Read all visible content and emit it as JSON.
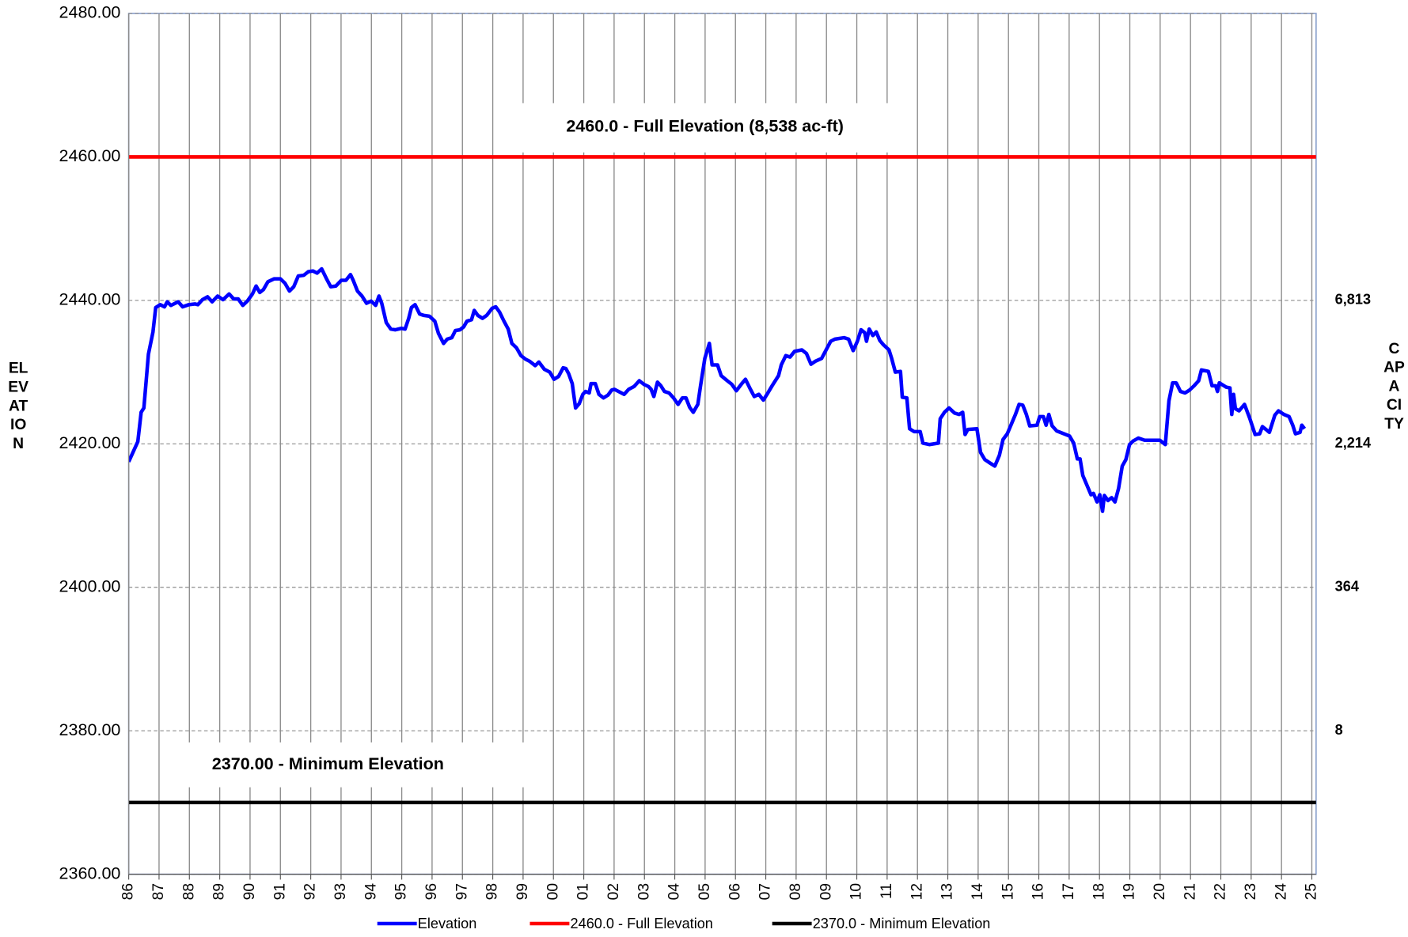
{
  "chart_data": {
    "type": "line",
    "y_axis_title": "ELEVATION",
    "y2_axis_title": "CAPACITY",
    "annotations": [
      {
        "text": "2460.0 - Full Elevation (8,538 ac-ft)"
      },
      {
        "text": "2370.00 - Minimum Elevation"
      }
    ],
    "xlim": [
      1986,
      2025.14
    ],
    "xticks": [
      {
        "value": 1986,
        "label": "86"
      },
      {
        "value": 1987,
        "label": "87"
      },
      {
        "value": 1988,
        "label": "88"
      },
      {
        "value": 1989,
        "label": "89"
      },
      {
        "value": 1990,
        "label": "90"
      },
      {
        "value": 1991,
        "label": "91"
      },
      {
        "value": 1992,
        "label": "92"
      },
      {
        "value": 1993,
        "label": "93"
      },
      {
        "value": 1994,
        "label": "94"
      },
      {
        "value": 1995,
        "label": "95"
      },
      {
        "value": 1996,
        "label": "96"
      },
      {
        "value": 1997,
        "label": "97"
      },
      {
        "value": 1998,
        "label": "98"
      },
      {
        "value": 1999,
        "label": "99"
      },
      {
        "value": 2000,
        "label": "00"
      },
      {
        "value": 2001,
        "label": "01"
      },
      {
        "value": 2002,
        "label": "02"
      },
      {
        "value": 2003,
        "label": "03"
      },
      {
        "value": 2004,
        "label": "04"
      },
      {
        "value": 2005,
        "label": "05"
      },
      {
        "value": 2006,
        "label": "06"
      },
      {
        "value": 2007,
        "label": "07"
      },
      {
        "value": 2008,
        "label": "08"
      },
      {
        "value": 2009,
        "label": "09"
      },
      {
        "value": 2010,
        "label": "10"
      },
      {
        "value": 2011,
        "label": "11"
      },
      {
        "value": 2012,
        "label": "12"
      },
      {
        "value": 2013,
        "label": "13"
      },
      {
        "value": 2014,
        "label": "14"
      },
      {
        "value": 2015,
        "label": "15"
      },
      {
        "value": 2016,
        "label": "16"
      },
      {
        "value": 2017,
        "label": "17"
      },
      {
        "value": 2018,
        "label": "18"
      },
      {
        "value": 2019,
        "label": "19"
      },
      {
        "value": 2020,
        "label": "20"
      },
      {
        "value": 2021,
        "label": "21"
      },
      {
        "value": 2022,
        "label": "22"
      },
      {
        "value": 2023,
        "label": "23"
      },
      {
        "value": 2024,
        "label": "24"
      },
      {
        "value": 2025,
        "label": "25"
      }
    ],
    "ylim": [
      2360,
      2480
    ],
    "yticks": [
      {
        "value": 2360,
        "label": "2360.00"
      },
      {
        "value": 2380,
        "label": "2380.00"
      },
      {
        "value": 2400,
        "label": "2400.00"
      },
      {
        "value": 2420,
        "label": "2420.00"
      },
      {
        "value": 2440,
        "label": "2440.00"
      },
      {
        "value": 2460,
        "label": "2460.00"
      },
      {
        "value": 2480,
        "label": "2480.00"
      }
    ],
    "y2ticks": [
      {
        "at": 2440,
        "value": 6813,
        "label": "6,813"
      },
      {
        "at": 2420,
        "value": 2214,
        "label": "2,214"
      },
      {
        "at": 2400,
        "value": 364,
        "label": "364"
      },
      {
        "at": 2380,
        "value": 8,
        "label": "8"
      }
    ],
    "grid": true,
    "series": [
      {
        "name": "Elevation",
        "color": "#0000ff",
        "x": [
          1986.0,
          1986.3,
          1986.41,
          1986.5,
          1986.65,
          1986.8,
          1986.89,
          1987.04,
          1987.18,
          1987.27,
          1987.39,
          1987.63,
          1987.78,
          1987.98,
          1988.19,
          1988.28,
          1988.43,
          1988.6,
          1988.75,
          1988.93,
          1989.11,
          1989.31,
          1989.46,
          1989.61,
          1989.76,
          1989.91,
          1990.08,
          1990.2,
          1990.32,
          1990.44,
          1990.59,
          1990.79,
          1991.0,
          1991.15,
          1991.3,
          1991.44,
          1991.59,
          1991.77,
          1991.92,
          1992.07,
          1992.21,
          1992.36,
          1992.51,
          1992.66,
          1992.83,
          1993.01,
          1993.16,
          1993.31,
          1993.4,
          1993.54,
          1993.69,
          1993.84,
          1993.99,
          1994.14,
          1994.25,
          1994.34,
          1994.49,
          1994.64,
          1994.79,
          1994.99,
          1995.11,
          1995.23,
          1995.32,
          1995.44,
          1995.59,
          1995.73,
          1995.91,
          1996.09,
          1996.21,
          1996.38,
          1996.5,
          1996.65,
          1996.77,
          1996.92,
          1997.04,
          1997.15,
          1997.3,
          1997.39,
          1997.51,
          1997.66,
          1997.8,
          1997.98,
          1998.1,
          1998.22,
          1998.37,
          1998.51,
          1998.63,
          1998.78,
          1998.93,
          1999.08,
          1999.22,
          1999.4,
          1999.52,
          1999.7,
          1999.88,
          2000.02,
          2000.17,
          2000.32,
          2000.41,
          2000.5,
          2000.62,
          2000.73,
          2000.85,
          2000.97,
          2001.06,
          2001.18,
          2001.24,
          2001.38,
          2001.5,
          2001.65,
          2001.8,
          2001.92,
          2002.01,
          2002.15,
          2002.33,
          2002.48,
          2002.66,
          2002.83,
          2002.98,
          2003.13,
          2003.22,
          2003.31,
          2003.43,
          2003.54,
          2003.66,
          2003.81,
          2003.96,
          2004.11,
          2004.25,
          2004.37,
          2004.49,
          2004.61,
          2004.76,
          2004.85,
          2004.99,
          2005.14,
          2005.23,
          2005.41,
          2005.53,
          2005.73,
          2005.88,
          2006.03,
          2006.21,
          2006.33,
          2006.47,
          2006.62,
          2006.77,
          2006.92,
          2007.07,
          2007.21,
          2007.42,
          2007.51,
          2007.66,
          2007.8,
          2007.95,
          2008.19,
          2008.34,
          2008.49,
          2008.63,
          2008.84,
          2008.99,
          2009.14,
          2009.28,
          2009.58,
          2009.73,
          2009.88,
          2010.02,
          2010.14,
          2010.26,
          2010.32,
          2010.41,
          2010.53,
          2010.64,
          2010.76,
          2010.88,
          2011.06,
          2011.15,
          2011.27,
          2011.44,
          2011.5,
          2011.65,
          2011.74,
          2011.89,
          2012.09,
          2012.18,
          2012.39,
          2012.69,
          2012.75,
          2012.89,
          2013.04,
          2013.22,
          2013.37,
          2013.49,
          2013.57,
          2013.66,
          2013.96,
          2014.08,
          2014.22,
          2014.4,
          2014.55,
          2014.7,
          2014.82,
          2014.96,
          2015.08,
          2015.23,
          2015.35,
          2015.47,
          2015.59,
          2015.7,
          2015.94,
          2016.03,
          2016.15,
          2016.24,
          2016.33,
          2016.44,
          2016.59,
          2016.83,
          2017.01,
          2017.15,
          2017.27,
          2017.36,
          2017.45,
          2017.57,
          2017.72,
          2017.8,
          2017.92,
          2018.01,
          2018.1,
          2018.16,
          2018.28,
          2018.4,
          2018.51,
          2018.63,
          2018.75,
          2018.87,
          2018.99,
          2019.11,
          2019.28,
          2019.49,
          2019.99,
          2020.17,
          2020.29,
          2020.41,
          2020.53,
          2020.67,
          2020.82,
          2020.97,
          2021.12,
          2021.27,
          2021.36,
          2021.59,
          2021.71,
          2021.83,
          2021.89,
          2021.95,
          2022.18,
          2022.3,
          2022.36,
          2022.42,
          2022.48,
          2022.6,
          2022.78,
          2022.95,
          2023.13,
          2023.28,
          2023.37,
          2023.49,
          2023.6,
          2023.78,
          2023.9,
          2024.08,
          2024.25,
          2024.37,
          2024.46,
          2024.61,
          2024.67,
          2024.76
        ],
        "values": [
          2417.5,
          2420.3,
          2424.4,
          2425.0,
          2432.5,
          2435.6,
          2439.0,
          2439.4,
          2439.1,
          2439.8,
          2439.3,
          2439.8,
          2439.1,
          2439.4,
          2439.5,
          2439.4,
          2440.1,
          2440.5,
          2439.8,
          2440.6,
          2440.1,
          2440.9,
          2440.2,
          2440.2,
          2439.3,
          2439.9,
          2440.9,
          2442.0,
          2441.1,
          2441.5,
          2442.6,
          2443.0,
          2443.0,
          2442.4,
          2441.3,
          2441.9,
          2443.4,
          2443.5,
          2444.0,
          2444.1,
          2443.8,
          2444.4,
          2443.1,
          2441.9,
          2442.0,
          2442.8,
          2442.8,
          2443.6,
          2442.8,
          2441.3,
          2440.6,
          2439.6,
          2439.9,
          2439.3,
          2440.6,
          2439.6,
          2436.9,
          2436.0,
          2435.9,
          2436.1,
          2436.0,
          2437.5,
          2439.0,
          2439.4,
          2438.1,
          2437.9,
          2437.8,
          2437.1,
          2435.4,
          2434.0,
          2434.6,
          2434.8,
          2435.8,
          2435.9,
          2436.3,
          2437.1,
          2437.3,
          2438.6,
          2437.9,
          2437.5,
          2437.9,
          2438.9,
          2439.1,
          2438.4,
          2437.1,
          2436.0,
          2434.0,
          2433.4,
          2432.3,
          2431.8,
          2431.5,
          2430.9,
          2431.4,
          2430.4,
          2430.0,
          2429.0,
          2429.4,
          2430.6,
          2430.5,
          2429.8,
          2428.4,
          2425.0,
          2425.6,
          2426.9,
          2427.3,
          2427.1,
          2428.4,
          2428.4,
          2426.9,
          2426.4,
          2426.8,
          2427.5,
          2427.6,
          2427.3,
          2426.9,
          2427.6,
          2428.0,
          2428.8,
          2428.3,
          2428.0,
          2427.6,
          2426.6,
          2428.6,
          2428.1,
          2427.3,
          2427.1,
          2426.4,
          2425.5,
          2426.4,
          2426.4,
          2425.1,
          2424.4,
          2425.5,
          2428.1,
          2431.9,
          2434.0,
          2431.0,
          2431.0,
          2429.5,
          2428.8,
          2428.3,
          2427.4,
          2428.4,
          2429.0,
          2427.8,
          2426.6,
          2426.9,
          2426.1,
          2427.1,
          2428.1,
          2429.5,
          2431.0,
          2432.3,
          2432.1,
          2432.9,
          2433.1,
          2432.6,
          2431.1,
          2431.5,
          2431.9,
          2433.1,
          2434.3,
          2434.6,
          2434.8,
          2434.6,
          2433.0,
          2434.3,
          2435.9,
          2435.5,
          2434.3,
          2436.0,
          2435.1,
          2435.6,
          2434.4,
          2433.8,
          2433.1,
          2431.9,
          2430.0,
          2430.1,
          2426.5,
          2426.4,
          2422.1,
          2421.7,
          2421.7,
          2420.1,
          2419.9,
          2420.1,
          2423.5,
          2424.4,
          2425.0,
          2424.3,
          2424.1,
          2424.4,
          2421.3,
          2422.0,
          2422.1,
          2418.8,
          2417.8,
          2417.3,
          2416.9,
          2418.4,
          2420.6,
          2421.4,
          2422.6,
          2424.1,
          2425.5,
          2425.4,
          2424.1,
          2422.5,
          2422.6,
          2423.8,
          2423.8,
          2422.6,
          2424.1,
          2422.5,
          2421.8,
          2421.4,
          2421.1,
          2420.1,
          2417.9,
          2417.9,
          2415.6,
          2414.4,
          2412.9,
          2413.1,
          2411.9,
          2412.9,
          2410.6,
          2412.8,
          2412.1,
          2412.5,
          2411.9,
          2413.8,
          2416.9,
          2417.8,
          2419.9,
          2420.4,
          2420.8,
          2420.5,
          2420.5,
          2419.9,
          2426.0,
          2428.5,
          2428.5,
          2427.3,
          2427.1,
          2427.5,
          2428.1,
          2428.8,
          2430.3,
          2430.1,
          2428.1,
          2428.1,
          2427.3,
          2428.5,
          2427.9,
          2427.8,
          2424.1,
          2426.9,
          2424.9,
          2424.6,
          2425.5,
          2423.6,
          2421.3,
          2421.4,
          2422.4,
          2422.0,
          2421.6,
          2424.0,
          2424.6,
          2424.1,
          2423.8,
          2422.6,
          2421.4,
          2421.6,
          2422.6,
          2422.1
        ]
      }
    ],
    "reference_lines": [
      {
        "name": "2460.0 - Full Elevation",
        "color": "#ff0000",
        "value": 2460
      },
      {
        "name": "2370.0 - Minimum Elevation",
        "color": "#000000",
        "value": 2370
      }
    ]
  }
}
